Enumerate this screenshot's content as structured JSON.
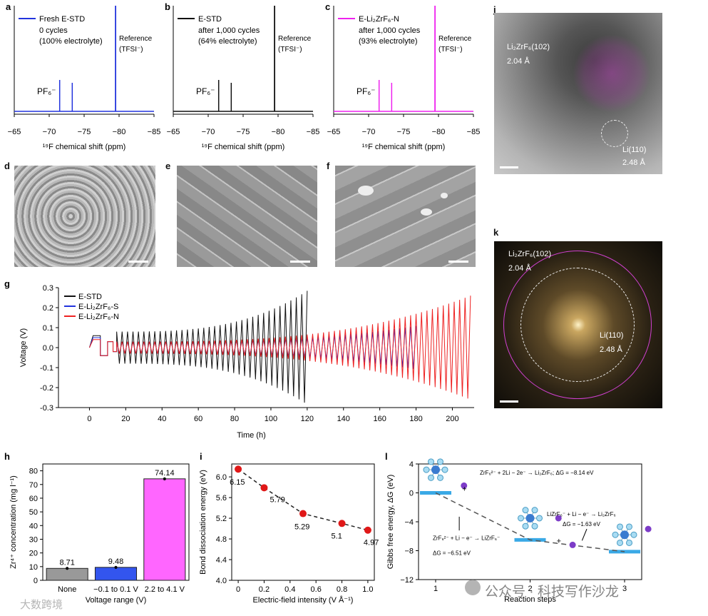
{
  "panels": {
    "a": {
      "letter": "a",
      "legend": "Fresh E-STD",
      "line2": "0 cycles",
      "line3": "(100% electrolyte)",
      "ref_label": "Reference",
      "ref_sub": "(TFSI⁻)",
      "pf6": "PF₆⁻",
      "color": "#2233dd"
    },
    "b": {
      "letter": "b",
      "legend": "E-STD",
      "line2": "after 1,000 cycles",
      "line3": "(64% electrolyte)",
      "ref_label": "Reference",
      "ref_sub": "(TFSI⁻)",
      "pf6": "PF₆⁻",
      "color": "#111111"
    },
    "c": {
      "letter": "c",
      "legend": "E-Li₂ZrF₆-N",
      "line2": "after 1,000 cycles",
      "line3": "(93% electrolyte)",
      "ref_label": "Reference",
      "ref_sub": "(TFSI⁻)",
      "pf6": "PF₆⁻",
      "color": "#ee22ee"
    },
    "d": {
      "letter": "d"
    },
    "e": {
      "letter": "e"
    },
    "f": {
      "letter": "f"
    },
    "g": {
      "letter": "g"
    },
    "h": {
      "letter": "h"
    },
    "i": {
      "letter": "i"
    },
    "j": {
      "letter": "j",
      "label1": "Li₂ZrF₆(102)",
      "val1": "2.04 Å",
      "label2": "Li(110)",
      "val2": "2.48 Å"
    },
    "k": {
      "letter": "k",
      "label1": "Li₂ZrF₆(102)",
      "val1": "2.04 Å",
      "label2": "Li(110)",
      "val2": "2.48 Å"
    },
    "l": {
      "letter": "l",
      "eq1": "ZrF₆²⁻ + 2Li − 2e⁻ → Li₂ZrF₆; ΔG = −8.14 eV",
      "eq2": "LiZrF₆⁻ + Li − e⁻ → Li₂ZrF₆",
      "eq2b": "ΔG = −1.63 eV",
      "eq3": "ZrF₆²⁻ + Li − e⁻ → LiZrF₆⁻",
      "eq3b": "ΔG = −6.51 eV",
      "plus": "+",
      "li": "Li",
      "f": "F",
      "zr": "Zr"
    }
  },
  "nmr_axis": {
    "ticks": [
      "−65",
      "−70",
      "−75",
      "−80",
      "−85"
    ],
    "xlabel": "¹⁹F chemical shift (ppm)"
  },
  "watermark": {
    "left": "大数跨境",
    "right": "公众号 · 科技写作沙龙"
  },
  "chart_data": [
    {
      "type": "line",
      "id": "g",
      "title": "",
      "xlabel": "Time (h)",
      "ylabel": "Voltage (V)",
      "xlim": [
        -10,
        212
      ],
      "ylim": [
        -0.3,
        0.3
      ],
      "xticks": [
        0,
        20,
        40,
        60,
        80,
        100,
        120,
        140,
        160,
        180,
        200
      ],
      "yticks": [
        -0.3,
        -0.2,
        -0.1,
        0,
        0.1,
        0.2,
        0.3
      ],
      "series": [
        {
          "name": "E-STD",
          "color": "#111111",
          "end_time": 121,
          "peak_start": 0.08,
          "peak_end": 0.29
        },
        {
          "name": "E-Li₂ZrF₆-S",
          "color": "#2233dd",
          "end_time": 181,
          "peak_start": 0.03,
          "peak_end": 0.11
        },
        {
          "name": "E-Li₂ZrF₆-N",
          "color": "#ee2222",
          "end_time": 210,
          "peak_start": 0.03,
          "peak_end": 0.26
        }
      ]
    },
    {
      "type": "bar",
      "id": "h",
      "xlabel": "Voltage range (V)",
      "ylabel": "Zr⁴⁺ concentration (mg l⁻¹)",
      "ylim": [
        0,
        85
      ],
      "yticks": [
        0,
        10,
        20,
        30,
        40,
        50,
        60,
        70,
        80
      ],
      "categories": [
        "None",
        "−0.1 to 0.1 V",
        "2.2 to 4.1 V"
      ],
      "values": [
        8.71,
        9.48,
        74.14
      ],
      "labels": [
        "8.71",
        "9.48",
        "74.14"
      ],
      "colors": [
        "#999999",
        "#3355ee",
        "#ff66ff"
      ]
    },
    {
      "type": "line",
      "id": "i",
      "xlabel": "Electric-field intensity (V Å⁻¹)",
      "ylabel": "Bond dissociation energy (eV)",
      "xlim": [
        -0.05,
        1.05
      ],
      "ylim": [
        4.0,
        6.25
      ],
      "xticks": [
        0,
        0.2,
        0.4,
        0.6,
        0.8,
        1.0
      ],
      "xtick_labels": [
        "0",
        "0.2",
        "0.4",
        "0.6",
        "0.8",
        "1.0"
      ],
      "yticks": [
        4.0,
        4.4,
        4.8,
        5.2,
        5.6,
        6.0
      ],
      "ytick_labels": [
        "4.0",
        "4.4",
        "4.8",
        "5.2",
        "5.6",
        "6.0"
      ],
      "x": [
        0,
        0.2,
        0.5,
        0.8,
        1.0
      ],
      "y": [
        6.15,
        5.79,
        5.29,
        5.1,
        4.97
      ],
      "labels": [
        "6.15",
        "5.79",
        "5.29",
        "5.1",
        "4.97"
      ]
    },
    {
      "type": "line",
      "id": "l",
      "xlabel": "Reaction steps",
      "ylabel": "Gibbs free energy, ΔG (eV)",
      "ylim": [
        -12,
        4
      ],
      "yticks": [
        4,
        0,
        -4,
        -8,
        -12
      ],
      "xticks": [
        1,
        2,
        3
      ],
      "x": [
        1,
        2,
        3
      ],
      "y": [
        0,
        -6.51,
        -8.14
      ]
    }
  ]
}
